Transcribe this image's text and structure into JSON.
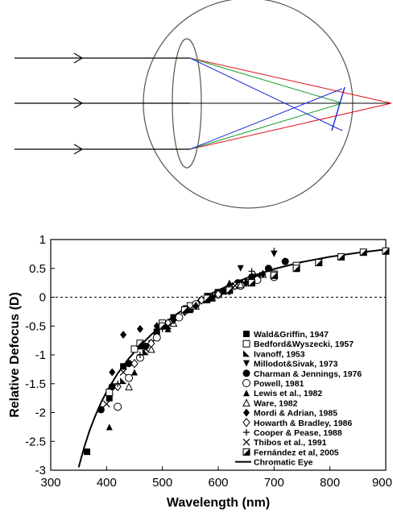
{
  "colors": {
    "ray_red": "#e0101a",
    "ray_green": "#16a02a",
    "ray_blue": "#1a2ad8",
    "outline": "#555555",
    "ink": "#000000"
  },
  "chart_data": {
    "type": "scatter",
    "title": "",
    "xlabel": "Wavelength (nm)",
    "ylabel": "Relative Defocus (D)",
    "xlim": [
      300,
      900
    ],
    "ylim": [
      -3,
      1
    ],
    "xticks": [
      "300",
      "400",
      "500",
      "600",
      "700",
      "800",
      "900"
    ],
    "yticks": [
      "1",
      "0.5",
      "0",
      "-0.5",
      "-1",
      "-1.5",
      "-2",
      "-2.5",
      "-3"
    ],
    "reference_line": {
      "y": 0,
      "style": "dotted"
    },
    "legend_position": "right",
    "series": [
      {
        "name": "Wald&Griffin, 1947",
        "marker": "square-filled",
        "x": [
          365,
          405,
          430,
          460,
          490,
          520,
          550,
          580,
          610,
          640,
          670
        ],
        "y": [
          -2.68,
          -1.75,
          -1.2,
          -0.85,
          -0.6,
          -0.35,
          -0.2,
          -0.05,
          0.1,
          0.25,
          0.35
        ]
      },
      {
        "name": "Bedford&Wyszecki, 1957",
        "marker": "square-open",
        "x": [
          405,
          450,
          500,
          550,
          600,
          650,
          700,
          740
        ],
        "y": [
          -1.65,
          -0.9,
          -0.45,
          -0.15,
          0.08,
          0.25,
          0.4,
          0.55
        ]
      },
      {
        "name": "Ivanoff, 1953",
        "marker": "triangle-right-filled",
        "x": [
          430,
          470,
          510,
          550,
          590,
          630,
          670
        ],
        "y": [
          -1.45,
          -0.95,
          -0.5,
          -0.22,
          -0.02,
          0.2,
          0.35
        ]
      },
      {
        "name": "Millodot&Sivak, 1973",
        "marker": "triangle-down-filled",
        "x": [
          480,
          580,
          640,
          700
        ],
        "y": [
          -0.8,
          0.02,
          0.5,
          0.75
        ]
      },
      {
        "name": "Charman & Jennings, 1976",
        "marker": "circle-filled",
        "x": [
          390,
          410,
          440,
          470,
          500,
          540,
          570,
          600,
          635,
          660,
          690,
          720
        ],
        "y": [
          -1.95,
          -1.55,
          -1.15,
          -0.85,
          -0.5,
          -0.2,
          -0.05,
          0.08,
          0.25,
          0.35,
          0.5,
          0.62
        ]
      },
      {
        "name": "Powell, 1981",
        "marker": "circle-open",
        "x": [
          420,
          440,
          460,
          490,
          530,
          560,
          600,
          640,
          670,
          700
        ],
        "y": [
          -1.9,
          -1.4,
          -1.05,
          -0.7,
          -0.35,
          -0.12,
          0.05,
          0.2,
          0.3,
          0.35
        ]
      },
      {
        "name": "Lewis et al., 1982",
        "marker": "triangle-up-filled",
        "x": [
          405,
          450,
          510,
          570,
          620
        ],
        "y": [
          -2.25,
          -1.3,
          -0.55,
          -0.05,
          0.25
        ]
      },
      {
        "name": "Ware, 1982",
        "marker": "triangle-up-open",
        "x": [
          440,
          480,
          520,
          560,
          600,
          640,
          680
        ],
        "y": [
          -1.55,
          -0.9,
          -0.45,
          -0.15,
          0.05,
          0.22,
          0.4
        ]
      },
      {
        "name": "Mordi & Adrian, 1985",
        "marker": "diamond-filled",
        "x": [
          410,
          430,
          460,
          490,
          520,
          560,
          590,
          620,
          650,
          680
        ],
        "y": [
          -1.3,
          -0.65,
          -0.55,
          -0.5,
          -0.4,
          -0.15,
          0.0,
          0.1,
          0.25,
          0.4
        ]
      },
      {
        "name": "Howarth & Bradley, 1986",
        "marker": "diamond-open",
        "x": [
          420,
          450,
          480,
          510,
          540,
          570,
          600,
          630
        ],
        "y": [
          -1.55,
          -1.15,
          -0.8,
          -0.45,
          -0.25,
          -0.05,
          0.05,
          0.2
        ]
      },
      {
        "name": "Cooper & Pease, 1988",
        "marker": "plus",
        "x": [
          420,
          460,
          500,
          540,
          580,
          620,
          660,
          700
        ],
        "y": [
          -1.5,
          -1.0,
          -0.55,
          -0.25,
          0.0,
          0.2,
          0.45,
          0.8
        ]
      },
      {
        "name": "Thibos et al., 1991",
        "marker": "cross",
        "x": [
          400,
          430,
          470,
          510,
          550,
          590,
          630,
          670
        ],
        "y": [
          -1.85,
          -1.3,
          -0.9,
          -0.5,
          -0.2,
          0.0,
          0.2,
          0.38
        ]
      },
      {
        "name": "Fernández et al, 2005",
        "marker": "square-half",
        "x": [
          460,
          500,
          540,
          580,
          620,
          660,
          700,
          740,
          780,
          820,
          860,
          900
        ],
        "y": [
          -0.8,
          -0.5,
          -0.22,
          -0.02,
          0.12,
          0.25,
          0.38,
          0.5,
          0.6,
          0.7,
          0.78,
          0.8
        ]
      },
      {
        "name": "Chromatic Eye",
        "marker": "line",
        "x": [
          350,
          360,
          370,
          380,
          390,
          400,
          420,
          440,
          460,
          480,
          500,
          520,
          540,
          560,
          580,
          600,
          620,
          650,
          700,
          750,
          800,
          850,
          900
        ],
        "y": [
          -2.95,
          -2.6,
          -2.3,
          -2.05,
          -1.83,
          -1.64,
          -1.32,
          -1.06,
          -0.84,
          -0.65,
          -0.48,
          -0.33,
          -0.2,
          -0.08,
          0.03,
          0.12,
          0.21,
          0.33,
          0.49,
          0.61,
          0.7,
          0.77,
          0.83
        ]
      }
    ]
  }
}
